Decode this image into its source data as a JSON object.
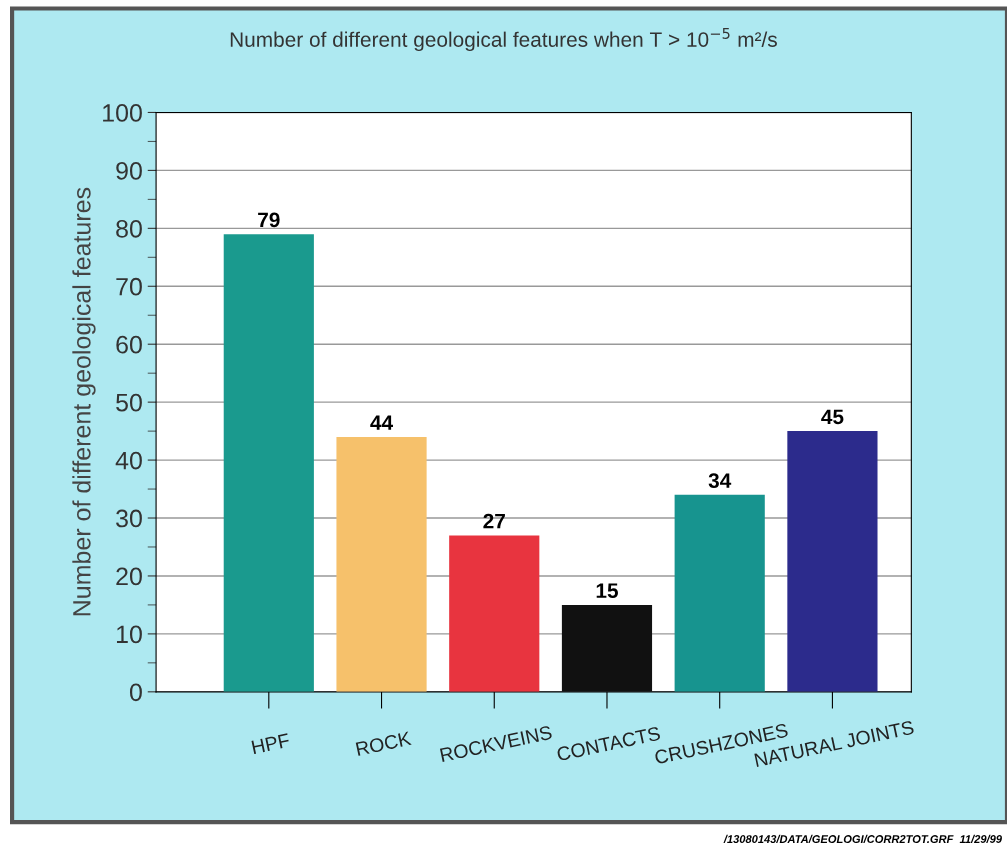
{
  "chart_data": {
    "type": "bar",
    "title": "Number of different geological features when T > 10$^{−5}$ m²/s",
    "ylabel": "Number of different geological features",
    "categories": [
      "HPF",
      "ROCK",
      "ROCKVEINS",
      "CONTACTS",
      "CRUSHZONES",
      "NATURAL JOINTS"
    ],
    "values": [
      79,
      44,
      27,
      15,
      34,
      45
    ],
    "colors": [
      "#1a9a8e",
      "#f6c16b",
      "#e8343f",
      "#111111",
      "#17948f",
      "#2c2b8c"
    ],
    "ylim": [
      0,
      100
    ],
    "yticks": [
      0,
      10,
      20,
      30,
      40,
      50,
      60,
      70,
      80,
      90,
      100
    ],
    "grid": "y",
    "data_labels": true,
    "annotations": [
      "/13080143/DATA/GEOLOGI/CORR2TOT.GRF  11/29/99"
    ]
  }
}
